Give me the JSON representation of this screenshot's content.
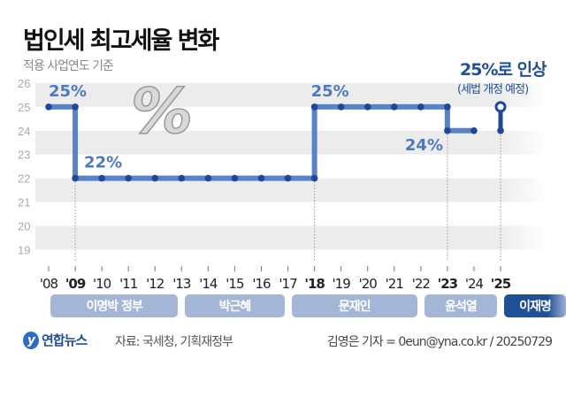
{
  "title": "법인세 최고세율 변화",
  "subtitle": "적용 사업연도 기준",
  "annotation": {
    "main": "25%로 인상",
    "sub": "(세법 개정 예정)"
  },
  "governments": [
    {
      "label": "이명박 정부",
      "from": "'09",
      "to": "'13"
    },
    {
      "label": "박근혜",
      "from": "'13",
      "to": "'17"
    },
    {
      "label": "문재인",
      "from": "'17",
      "to": "'22"
    },
    {
      "label": "윤석열",
      "from": "'22",
      "to": "'25"
    },
    {
      "label": "이재명",
      "from": "'25",
      "to": ""
    }
  ],
  "footer": {
    "logo": "연합뉴스",
    "source": "자료: 국세청, 기획재정부",
    "credit": "김영은 기자 = 0eun@yna.co.kr / 20250729"
  },
  "colors": {
    "line": "#5a82c6",
    "dot": "#1e4896",
    "accent": "#1f4f96",
    "label": "#4f79bf"
  },
  "chart_data": {
    "type": "line",
    "step": true,
    "x": [
      "'08",
      "'09",
      "'10",
      "'11",
      "'12",
      "'13",
      "'14",
      "'15",
      "'16",
      "'17",
      "'18",
      "'19",
      "'20",
      "'21",
      "'22",
      "'23",
      "'24",
      "'25"
    ],
    "bold_ticks": [
      "'09",
      "'18",
      "'23",
      "'25"
    ],
    "values": [
      25,
      22,
      22,
      22,
      22,
      22,
      22,
      22,
      22,
      22,
      25,
      25,
      25,
      25,
      25,
      24,
      24,
      25
    ],
    "planned": [
      "'25"
    ],
    "ylim": [
      19,
      26
    ],
    "yticks": [
      19,
      20,
      21,
      22,
      23,
      24,
      25,
      26
    ],
    "data_labels": [
      {
        "x": "'08",
        "text": "25%"
      },
      {
        "x": "'09",
        "text": "22%"
      },
      {
        "x": "'18",
        "text": "25%"
      },
      {
        "x": "'23",
        "text": "24%"
      }
    ],
    "grid": "alternating bands"
  }
}
